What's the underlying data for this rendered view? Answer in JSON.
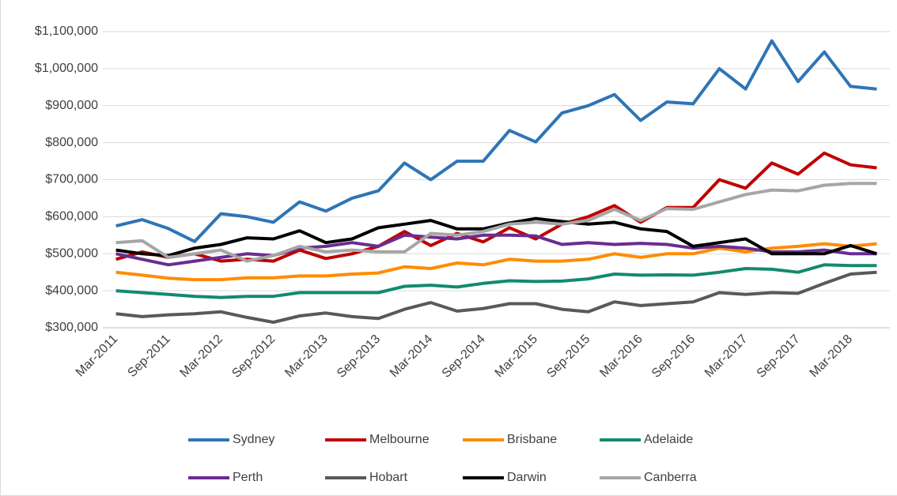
{
  "chart_data": {
    "type": "line",
    "categories": [
      "Mar-2011",
      null,
      "Sep-2011",
      null,
      "Mar-2012",
      null,
      "Sep-2012",
      null,
      "Mar-2013",
      null,
      "Sep-2013",
      null,
      "Mar-2014",
      null,
      "Sep-2014",
      null,
      "Mar-2015",
      null,
      "Sep-2015",
      null,
      "Mar-2016",
      null,
      "Sep-2016",
      null,
      "Mar-2017",
      null,
      "Sep-2017",
      null,
      "Mar-2018",
      null
    ],
    "series": [
      {
        "name": "Sydney",
        "color": "#2e75b6",
        "values": [
          575000,
          592000,
          568000,
          533000,
          608000,
          600000,
          585000,
          640000,
          615000,
          650000,
          670000,
          745000,
          700000,
          750000,
          750000,
          833000,
          802000,
          880000,
          900000,
          930000,
          860000,
          910000,
          905000,
          1000000,
          945000,
          1075000,
          965000,
          1045000,
          952000,
          945000
        ]
      },
      {
        "name": "Melbourne",
        "color": "#c00000",
        "values": [
          485000,
          505000,
          490000,
          500000,
          480000,
          485000,
          480000,
          510000,
          487000,
          500000,
          520000,
          560000,
          522000,
          555000,
          532000,
          570000,
          540000,
          580000,
          600000,
          630000,
          585000,
          625000,
          625000,
          700000,
          677000,
          745000,
          715000,
          772000,
          740000,
          732000
        ]
      },
      {
        "name": "Brisbane",
        "color": "#ff8c00",
        "values": [
          450000,
          442000,
          434000,
          430000,
          430000,
          435000,
          435000,
          440000,
          440000,
          445000,
          448000,
          465000,
          460000,
          475000,
          470000,
          485000,
          480000,
          480000,
          485000,
          500000,
          490000,
          500000,
          500000,
          515000,
          505000,
          515000,
          520000,
          527000,
          520000,
          527000
        ]
      },
      {
        "name": "Adelaide",
        "color": "#138a6e",
        "values": [
          400000,
          395000,
          390000,
          385000,
          382000,
          385000,
          385000,
          395000,
          395000,
          395000,
          395000,
          412000,
          415000,
          410000,
          420000,
          427000,
          425000,
          426000,
          432000,
          445000,
          442000,
          443000,
          442000,
          450000,
          460000,
          458000,
          450000,
          470000,
          468000,
          468000
        ]
      },
      {
        "name": "Perth",
        "color": "#6a2c91",
        "values": [
          500000,
          485000,
          470000,
          480000,
          490000,
          500000,
          495000,
          515000,
          520000,
          530000,
          520000,
          550000,
          545000,
          540000,
          550000,
          550000,
          548000,
          525000,
          530000,
          525000,
          528000,
          525000,
          515000,
          520000,
          515000,
          505000,
          505000,
          510000,
          500000,
          500000
        ]
      },
      {
        "name": "Hobart",
        "color": "#595959",
        "values": [
          338000,
          330000,
          335000,
          338000,
          343000,
          328000,
          315000,
          332000,
          340000,
          330000,
          325000,
          350000,
          368000,
          345000,
          352000,
          365000,
          365000,
          350000,
          343000,
          370000,
          360000,
          365000,
          370000,
          395000,
          390000,
          395000,
          393000,
          420000,
          445000,
          450000
        ]
      },
      {
        "name": "Darwin",
        "color": "#000000",
        "values": [
          510000,
          500000,
          495000,
          515000,
          525000,
          543000,
          540000,
          562000,
          530000,
          540000,
          570000,
          580000,
          590000,
          567000,
          567000,
          583000,
          595000,
          587000,
          580000,
          585000,
          567000,
          560000,
          520000,
          530000,
          540000,
          500000,
          500000,
          500000,
          522000,
          500000
        ]
      },
      {
        "name": "Canberra",
        "color": "#a6a6a6",
        "values": [
          530000,
          535000,
          490000,
          500000,
          510000,
          480000,
          495000,
          520000,
          505000,
          510000,
          505000,
          505000,
          555000,
          550000,
          560000,
          580000,
          585000,
          580000,
          590000,
          620000,
          590000,
          622000,
          620000,
          640000,
          660000,
          672000,
          670000,
          685000,
          690000,
          690000
        ]
      }
    ],
    "ylim": [
      300000,
      1100000
    ],
    "yticks": [
      {
        "value": 300000,
        "label": "$300,000"
      },
      {
        "value": 400000,
        "label": "$400,000"
      },
      {
        "value": 500000,
        "label": "$500,000"
      },
      {
        "value": 600000,
        "label": "$600,000"
      },
      {
        "value": 700000,
        "label": "$700,000"
      },
      {
        "value": 800000,
        "label": "$800,000"
      },
      {
        "value": 900000,
        "label": "$900,000"
      },
      {
        "value": 1000000,
        "label": "$1,000,000"
      },
      {
        "value": 1100000,
        "label": "$1,100,000"
      }
    ],
    "grid": true,
    "legend": "bottom"
  }
}
